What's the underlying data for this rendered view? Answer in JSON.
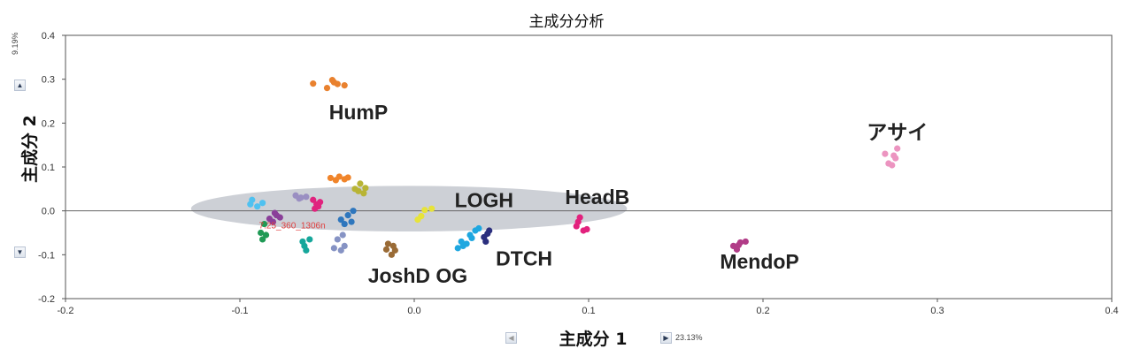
{
  "chart_data": {
    "type": "scatter",
    "title": "主成分分析",
    "xlabel": "主成分 1",
    "ylabel": "主成分 2",
    "x_variance": "23.13%",
    "y_variance": "9.19%",
    "xlim": [
      -0.2,
      0.4
    ],
    "ylim": [
      -0.2,
      0.4
    ],
    "x_ticks": [
      "-0.2",
      "-0.1",
      "0.0",
      "0.1",
      "0.2",
      "0.3",
      "0.4"
    ],
    "y_ticks": [
      "0.4",
      "0.3",
      "0.2",
      "0.1",
      "0.0",
      "-0.1",
      "-0.2"
    ],
    "x_tick_values": [
      -0.2,
      -0.1,
      0.0,
      0.1,
      0.2,
      0.3,
      0.4
    ],
    "y_tick_values": [
      0.4,
      0.3,
      0.2,
      0.1,
      0.0,
      -0.1,
      -0.2
    ],
    "grid": false,
    "confidence_ellipse": {
      "center": [
        -0.003,
        0.005
      ],
      "semi_axes": [
        0.125,
        0.052
      ],
      "color": "#c8cbd1"
    },
    "annotation": {
      "text": "7.25_360_1306n",
      "x": -0.07,
      "y": -0.04
    },
    "groups": [
      {
        "label": "HumP",
        "label_pos": [
          -0.032,
          0.225
        ],
        "color": "#e9812e",
        "points": [
          [
            -0.058,
            0.29
          ],
          [
            -0.05,
            0.28
          ],
          [
            -0.047,
            0.298
          ],
          [
            -0.044,
            0.289
          ],
          [
            -0.04,
            0.286
          ],
          [
            -0.046,
            0.293
          ]
        ]
      },
      {
        "label": "アサイ",
        "label_pos": [
          0.277,
          0.18
        ],
        "color": "#ec94c0",
        "points": [
          [
            0.27,
            0.13
          ],
          [
            0.277,
            0.142
          ],
          [
            0.275,
            0.126
          ],
          [
            0.274,
            0.104
          ],
          [
            0.272,
            0.108
          ],
          [
            0.276,
            0.12
          ]
        ]
      },
      {
        "label": "LOGH",
        "label_pos": [
          0.04,
          0.025
        ],
        "color": "#e7e33a",
        "points": [
          [
            0.002,
            -0.02
          ],
          [
            0.006,
            0.002
          ],
          [
            0.01,
            0.005
          ],
          [
            0.004,
            -0.012
          ]
        ]
      },
      {
        "label": "HeadB",
        "label_pos": [
          0.105,
          0.032
        ],
        "color": "#e2217d",
        "points": [
          [
            0.093,
            -0.035
          ],
          [
            0.095,
            -0.015
          ],
          [
            0.097,
            -0.045
          ],
          [
            0.099,
            -0.042
          ],
          [
            0.094,
            -0.025
          ]
        ]
      },
      {
        "label": "DTCH",
        "label_pos": [
          0.063,
          -0.108
        ],
        "color": "#2b2f7e",
        "points": [
          [
            0.041,
            -0.07
          ],
          [
            0.043,
            -0.045
          ],
          [
            0.04,
            -0.06
          ],
          [
            0.042,
            -0.052
          ]
        ]
      },
      {
        "label": "MendoP",
        "label_pos": [
          0.198,
          -0.115
        ],
        "color": "#b13c87",
        "points": [
          [
            0.183,
            -0.08
          ],
          [
            0.187,
            -0.072
          ],
          [
            0.19,
            -0.07
          ],
          [
            0.185,
            -0.088
          ],
          [
            0.186,
            -0.078
          ]
        ]
      },
      {
        "label": "JoshD OG",
        "label_pos": [
          0.002,
          -0.148
        ],
        "color": "#9a6b36",
        "points": [
          [
            -0.015,
            -0.075
          ],
          [
            -0.013,
            -0.1
          ],
          [
            -0.011,
            -0.09
          ],
          [
            -0.016,
            -0.088
          ],
          [
            -0.012,
            -0.08
          ]
        ]
      },
      {
        "label": "",
        "color": "#1ea7e0",
        "points": [
          [
            0.025,
            -0.085
          ],
          [
            0.028,
            -0.08
          ],
          [
            0.032,
            -0.055
          ],
          [
            0.035,
            -0.045
          ],
          [
            0.03,
            -0.075
          ],
          [
            0.037,
            -0.04
          ],
          [
            0.033,
            -0.062
          ],
          [
            0.027,
            -0.07
          ]
        ]
      },
      {
        "label": "",
        "color": "#f0842a",
        "points": [
          [
            -0.048,
            0.075
          ],
          [
            -0.043,
            0.078
          ],
          [
            -0.04,
            0.072
          ],
          [
            -0.045,
            0.07
          ],
          [
            -0.038,
            0.076
          ]
        ]
      },
      {
        "label": "",
        "color": "#b8b435",
        "points": [
          [
            -0.034,
            0.05
          ],
          [
            -0.031,
            0.062
          ],
          [
            -0.029,
            0.04
          ],
          [
            -0.032,
            0.045
          ],
          [
            -0.028,
            0.052
          ]
        ]
      },
      {
        "label": "",
        "color": "#e0237e",
        "points": [
          [
            -0.058,
            0.025
          ],
          [
            -0.056,
            0.015
          ],
          [
            -0.057,
            0.005
          ],
          [
            -0.055,
            0.01
          ],
          [
            -0.054,
            0.02
          ]
        ]
      },
      {
        "label": "",
        "color": "#9a8fc2",
        "points": [
          [
            -0.068,
            0.035
          ],
          [
            -0.065,
            0.03
          ],
          [
            -0.062,
            0.032
          ],
          [
            -0.066,
            0.028
          ]
        ]
      },
      {
        "label": "",
        "color": "#2e76bd",
        "points": [
          [
            -0.042,
            -0.02
          ],
          [
            -0.038,
            -0.01
          ],
          [
            -0.036,
            -0.025
          ],
          [
            -0.04,
            -0.03
          ],
          [
            -0.035,
            0.0
          ]
        ]
      },
      {
        "label": "",
        "color": "#4fc1f0",
        "points": [
          [
            -0.093,
            0.025
          ],
          [
            -0.09,
            0.01
          ],
          [
            -0.087,
            0.018
          ],
          [
            -0.094,
            0.015
          ]
        ]
      },
      {
        "label": "",
        "color": "#8a3f99",
        "points": [
          [
            -0.08,
            -0.005
          ],
          [
            -0.077,
            -0.015
          ],
          [
            -0.081,
            -0.025
          ],
          [
            -0.079,
            -0.01
          ],
          [
            -0.083,
            -0.018
          ]
        ]
      },
      {
        "label": "",
        "color": "#1f9a55",
        "points": [
          [
            -0.088,
            -0.05
          ],
          [
            -0.085,
            -0.055
          ],
          [
            -0.087,
            -0.065
          ],
          [
            -0.086,
            -0.03
          ]
        ]
      },
      {
        "label": "",
        "color": "#16a79b",
        "points": [
          [
            -0.063,
            -0.08
          ],
          [
            -0.062,
            -0.09
          ],
          [
            -0.06,
            -0.065
          ],
          [
            -0.064,
            -0.07
          ]
        ]
      },
      {
        "label": "",
        "color": "#8693c4",
        "points": [
          [
            -0.044,
            -0.065
          ],
          [
            -0.042,
            -0.09
          ],
          [
            -0.04,
            -0.08
          ],
          [
            -0.046,
            -0.085
          ],
          [
            -0.041,
            -0.055
          ]
        ]
      }
    ]
  }
}
